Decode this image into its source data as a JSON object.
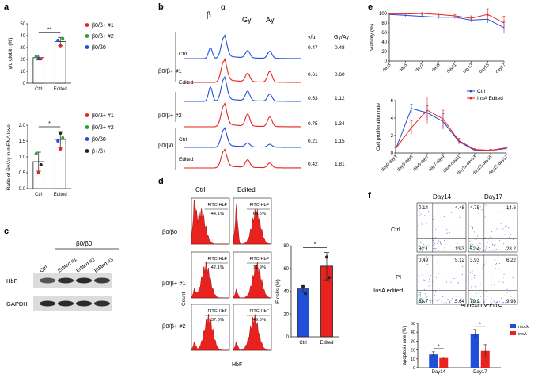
{
  "colors": {
    "blue": "#1f4fd8",
    "red": "#e8231f",
    "flow_red": "#e8231f",
    "green": "#2ca02c",
    "dark": "#222222",
    "bar_white": "#ffffff"
  },
  "chart_data": [
    {
      "id": "a_top",
      "panel_label": "a",
      "type": "bar",
      "categories": [
        "Ctrl",
        "Edited"
      ],
      "values": [
        21.5,
        35.0
      ],
      "errors": [
        2.0,
        3.5
      ],
      "ylabel": "γ/α globin (%)",
      "ylim": [
        0,
        50
      ],
      "yticks": [
        0,
        10,
        20,
        30,
        40,
        50
      ],
      "significance": "**",
      "legend": [
        "β0/β+ #1",
        "β0/β+ #2",
        "β0/β0"
      ],
      "legend_colors": [
        "#e8231f",
        "#2ca02c",
        "#1f4fd8"
      ],
      "points": [
        {
          "x": "Ctrl",
          "y": 21.0,
          "color": "#1f4fd8"
        },
        {
          "x": "Ctrl",
          "y": 20.5,
          "color": "#e8231f"
        },
        {
          "x": "Ctrl",
          "y": 22.5,
          "color": "#2ca02c"
        },
        {
          "x": "Edited",
          "y": 31.5,
          "color": "#e8231f"
        },
        {
          "x": "Edited",
          "y": 37.5,
          "color": "#2ca02c"
        },
        {
          "x": "Edited",
          "y": 36.0,
          "color": "#1f4fd8"
        }
      ]
    },
    {
      "id": "a_bottom",
      "type": "bar",
      "categories": [
        "Ctrl",
        "Edited"
      ],
      "values": [
        0.85,
        1.55
      ],
      "errors": [
        0.3,
        0.25
      ],
      "ylabel": "Ratio of Gγ/Aγ in mRNA level",
      "ylim": [
        0,
        2.0
      ],
      "yticks": [
        0.0,
        0.5,
        1.0,
        1.5,
        2.0
      ],
      "significance": "*",
      "legend": [
        "β0/β+ #1",
        "β0/β+ #2",
        "β0/β0",
        "β+/β+"
      ],
      "legend_colors": [
        "#e8231f",
        "#2ca02c",
        "#1f4fd8",
        "#222222"
      ],
      "points": [
        {
          "x": "Ctrl",
          "y": 0.5,
          "color": "#e8231f"
        },
        {
          "x": "Ctrl",
          "y": 0.75,
          "color": "#222222"
        },
        {
          "x": "Ctrl",
          "y": 1.1,
          "color": "#2ca02c"
        },
        {
          "x": "Edited",
          "y": 1.25,
          "color": "#e8231f"
        },
        {
          "x": "Edited",
          "y": 1.6,
          "color": "#2ca02c"
        },
        {
          "x": "Edited",
          "y": 1.5,
          "color": "#1f4fd8"
        },
        {
          "x": "Edited",
          "y": 1.75,
          "color": "#222222"
        }
      ]
    },
    {
      "id": "d_bar",
      "type": "bar",
      "categories": [
        "Ctrl",
        "Edited"
      ],
      "values": [
        42,
        62
      ],
      "errors": [
        3,
        12
      ],
      "bar_colors": [
        "#1f4fd8",
        "#e8231f"
      ],
      "ylabel": "F cells (%)",
      "ylim": [
        0,
        80
      ],
      "yticks": [
        0,
        20,
        40,
        60,
        80
      ],
      "significance": "*",
      "points": [
        {
          "x": "Ctrl",
          "y": 44
        },
        {
          "x": "Ctrl",
          "y": 38
        },
        {
          "x": "Edited",
          "y": 70
        },
        {
          "x": "Edited",
          "y": 52
        }
      ]
    },
    {
      "id": "e_viability",
      "panel_label": "e",
      "type": "line",
      "x": [
        "day3",
        "day5",
        "day7",
        "day9",
        "day11",
        "day13",
        "day15",
        "day17"
      ],
      "ylabel": "Viability (%)",
      "ylim": [
        0,
        100
      ],
      "yticks": [
        0,
        20,
        40,
        60,
        80,
        100
      ],
      "series": [
        {
          "name": "Ctrl",
          "color": "#1f4fd8",
          "values": [
            98,
            96,
            94,
            92,
            92,
            86,
            88,
            70
          ],
          "errors": [
            2,
            3,
            3,
            3,
            3,
            4,
            8,
            12
          ]
        },
        {
          "name": "InsA Edited",
          "color": "#e8231f",
          "values": [
            99,
            99,
            100,
            98,
            95,
            90,
            98,
            80
          ],
          "errors": [
            2,
            2,
            2,
            3,
            3,
            5,
            12,
            14
          ]
        }
      ]
    },
    {
      "id": "e_proliferation",
      "type": "line",
      "x": [
        "day0-day3",
        "day3-day5",
        "day5-day7",
        "day7-day9",
        "day9-day11",
        "day11-day13",
        "day13-day15",
        "day15-day17"
      ],
      "ylabel": "Cell proliferation rate",
      "ylim": [
        0,
        6
      ],
      "yticks": [
        0,
        2,
        4,
        6
      ],
      "series": [
        {
          "name": "Ctrl",
          "color": "#1f4fd8",
          "values": [
            0.4,
            5.1,
            4.6,
            3.6,
            1.3,
            0.3,
            0.3,
            0.5
          ],
          "errors": [
            0.2,
            0.5,
            0.8,
            0.9,
            0.3,
            0.1,
            0.1,
            0.1
          ]
        },
        {
          "name": "InsA Edited",
          "color": "#e8231f",
          "values": [
            0.5,
            2.9,
            4.9,
            3.9,
            1.4,
            0.4,
            0.3,
            0.6
          ],
          "errors": [
            0.2,
            0.8,
            1.5,
            1.0,
            0.3,
            0.1,
            0.1,
            0.1
          ]
        }
      ]
    },
    {
      "id": "f_apoptosis",
      "type": "bar",
      "categories": [
        "Day14",
        "Day17"
      ],
      "ylabel": "apoptosis rate (%)",
      "ylim": [
        0,
        50
      ],
      "yticks": [
        0,
        10,
        20,
        30,
        40,
        50
      ],
      "significance": [
        "*",
        "*"
      ],
      "series": [
        {
          "name": "mock",
          "color": "#1f4fd8",
          "values": [
            15,
            38
          ],
          "errors": [
            3,
            5
          ]
        },
        {
          "name": "insA",
          "color": "#e8231f",
          "values": [
            11,
            19
          ],
          "errors": [
            1,
            7
          ]
        }
      ]
    }
  ],
  "panel_b": {
    "panel_label": "b",
    "peak_labels": [
      "β",
      "α",
      "Gγ",
      "Aγ"
    ],
    "ratio_headers": [
      "γ/α",
      "Gγ/Aγ"
    ],
    "groups": [
      {
        "name": "β0/β+ #1",
        "rows": [
          {
            "label": "Ctrl",
            "color": "#1f4fd8",
            "g_a": "0.47",
            "gg_ag": "0.48",
            "peaks": [
              0.45,
              0.9,
              0.3,
              0.3
            ]
          },
          {
            "label": "Edited",
            "color": "#e8231f",
            "g_a": "0.61",
            "gg_ag": "0.60",
            "peaks": [
              0.0,
              0.9,
              0.35,
              0.45
            ]
          }
        ]
      },
      {
        "name": "β0/β+ #2",
        "rows": [
          {
            "label": "",
            "color": "#1f4fd8",
            "g_a": "0.53",
            "gg_ag": "1.12",
            "peaks": [
              0.6,
              0.95,
              0.4,
              0.3
            ]
          },
          {
            "label": "",
            "color": "#e8231f",
            "g_a": "0.75",
            "gg_ag": "1.34",
            "peaks": [
              0.0,
              0.9,
              0.5,
              0.4
            ]
          }
        ]
      },
      {
        "name": "β0/β0",
        "rows": [
          {
            "label": "Ctrl",
            "color": "#1f4fd8",
            "g_a": "0.21",
            "gg_ag": "1.15",
            "peaks": [
              0.0,
              0.95,
              0.2,
              0.15
            ]
          },
          {
            "label": "Edited",
            "color": "#e8231f",
            "g_a": "0.42",
            "gg_ag": "1.81",
            "peaks": [
              0.0,
              0.9,
              0.4,
              0.25
            ]
          }
        ]
      }
    ]
  },
  "panel_c": {
    "panel_label": "c",
    "group_label": "β0/β0",
    "lanes": [
      "Ctrl",
      "Edited #1",
      "Edited #2",
      "Edited #3"
    ],
    "bands": [
      {
        "name": "HbF",
        "intensities": [
          0.55,
          0.85,
          0.9,
          0.75
        ]
      },
      {
        "name": "GAPDH",
        "intensities": [
          0.9,
          0.9,
          0.9,
          0.85
        ]
      }
    ]
  },
  "panel_d": {
    "panel_label": "d",
    "columns": [
      "Ctrl",
      "Edited"
    ],
    "rows": [
      "β0/β0",
      "β0/β+ #1",
      "β0/β+ #2"
    ],
    "gate_label": "FITC-HbF",
    "values": [
      [
        "44.1%",
        "64.5%"
      ],
      [
        "42.1%",
        "71.9%"
      ],
      [
        "37.6%",
        "49.5%"
      ]
    ],
    "ylabel": "Count",
    "xlabel": "HbF"
  },
  "panel_f": {
    "panel_label": "f",
    "columns": [
      "Day14",
      "Day17"
    ],
    "row_labels": [
      "Ctrl",
      "InsA edited"
    ],
    "y_axis_label": "PI",
    "x_axis_label": "Annexin V-FITC",
    "quadrants": [
      [
        [
          "0.14",
          "4.48",
          "82.1",
          "13.3"
        ],
        [
          "4.75",
          "14.6",
          "52.4",
          "28.2"
        ]
      ],
      [
        [
          "0.49",
          "5.12",
          "88.7",
          "5.64"
        ],
        [
          "3.93",
          "6.22",
          "79.9",
          "9.98"
        ]
      ]
    ]
  }
}
